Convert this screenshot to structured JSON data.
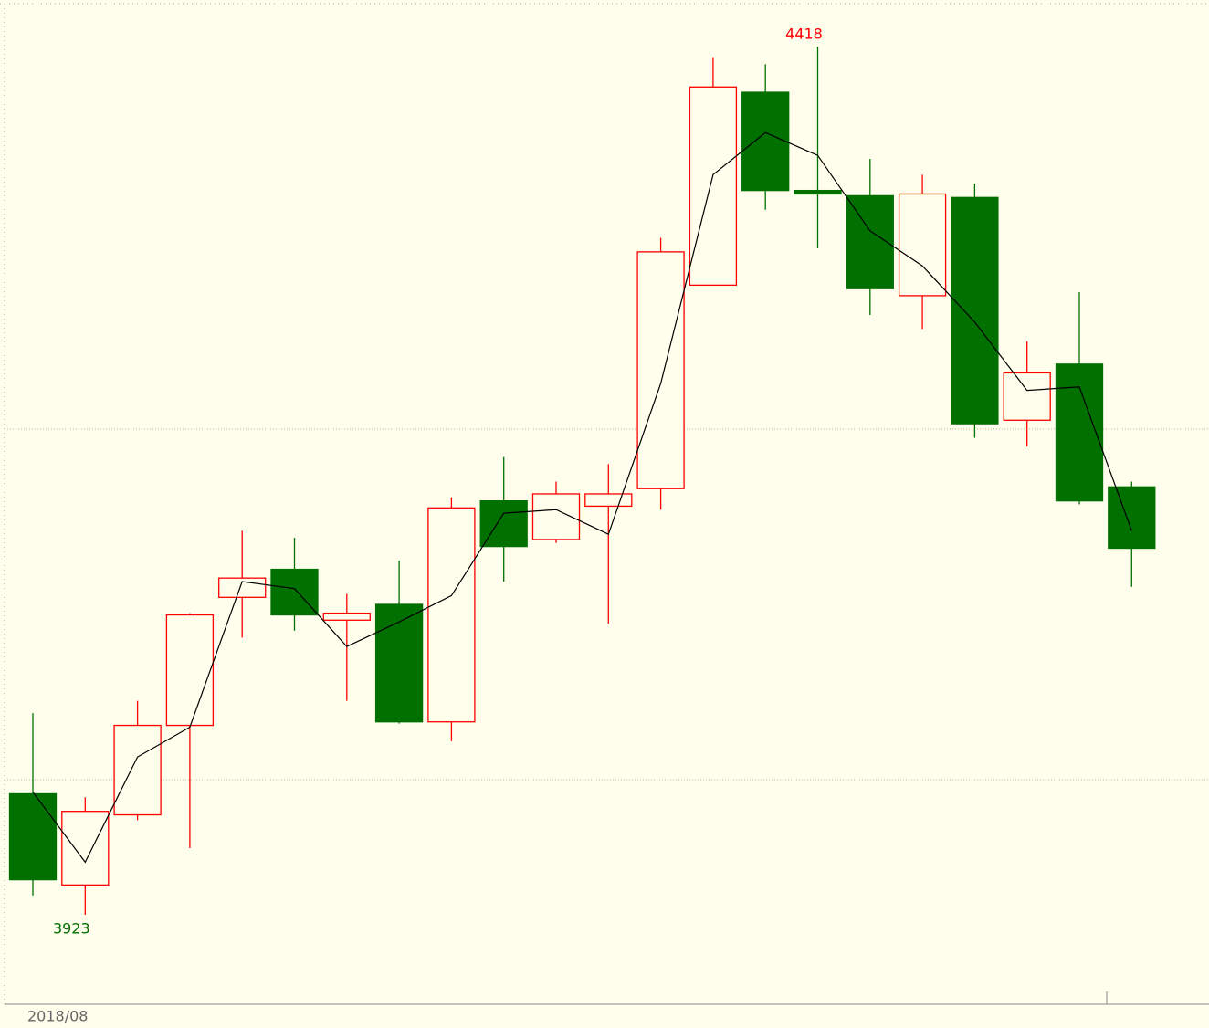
{
  "chart_data": {
    "type": "candlestick",
    "categories": [
      "2018/08",
      null,
      null,
      null,
      null,
      null,
      null,
      null,
      null,
      null,
      null,
      null,
      null,
      null,
      null,
      null,
      null,
      null,
      null,
      null,
      null,
      null
    ],
    "open": [
      3992,
      3940,
      3980,
      4031,
      4104,
      4120,
      4091,
      4100,
      4033,
      4159,
      4137,
      4156,
      4166,
      4282,
      4392,
      4336,
      4333,
      4276,
      4332,
      4205,
      4237,
      4167
    ],
    "high": [
      4038,
      3990,
      4045,
      4095,
      4142,
      4138,
      4106,
      4125,
      4161,
      4184,
      4170,
      4180,
      4309,
      4412,
      4408,
      4418,
      4354,
      4345,
      4340,
      4250,
      4278,
      4170
    ],
    "low": [
      3934,
      3923,
      3977,
      3961,
      4081,
      4085,
      4045,
      4032,
      4022,
      4113,
      4135,
      4089,
      4154,
      4282,
      4325,
      4303,
      4265,
      4257,
      4195,
      4190,
      4157,
      4110
    ],
    "close": [
      3943,
      3982,
      4031,
      4094,
      4115,
      4094,
      4095,
      4033,
      4155,
      4133,
      4163,
      4163,
      4301,
      4395,
      4336,
      4334,
      4280,
      4334,
      4203,
      4232,
      4159,
      4132
    ],
    "ma": {
      "color": "#000000",
      "values": [
        3993,
        3953,
        4013,
        4030,
        4113,
        4109,
        4076,
        4090,
        4105,
        4152,
        4154,
        4140,
        4226,
        4345,
        4369,
        4356,
        4313,
        4293,
        4261,
        4222,
        4224,
        4142
      ]
    },
    "up_color": "#ff0000",
    "down_color": "#007000",
    "ylim": [
      3872,
      4442
    ],
    "yticks": [
      4000,
      4200
    ],
    "grid": true
  }
}
